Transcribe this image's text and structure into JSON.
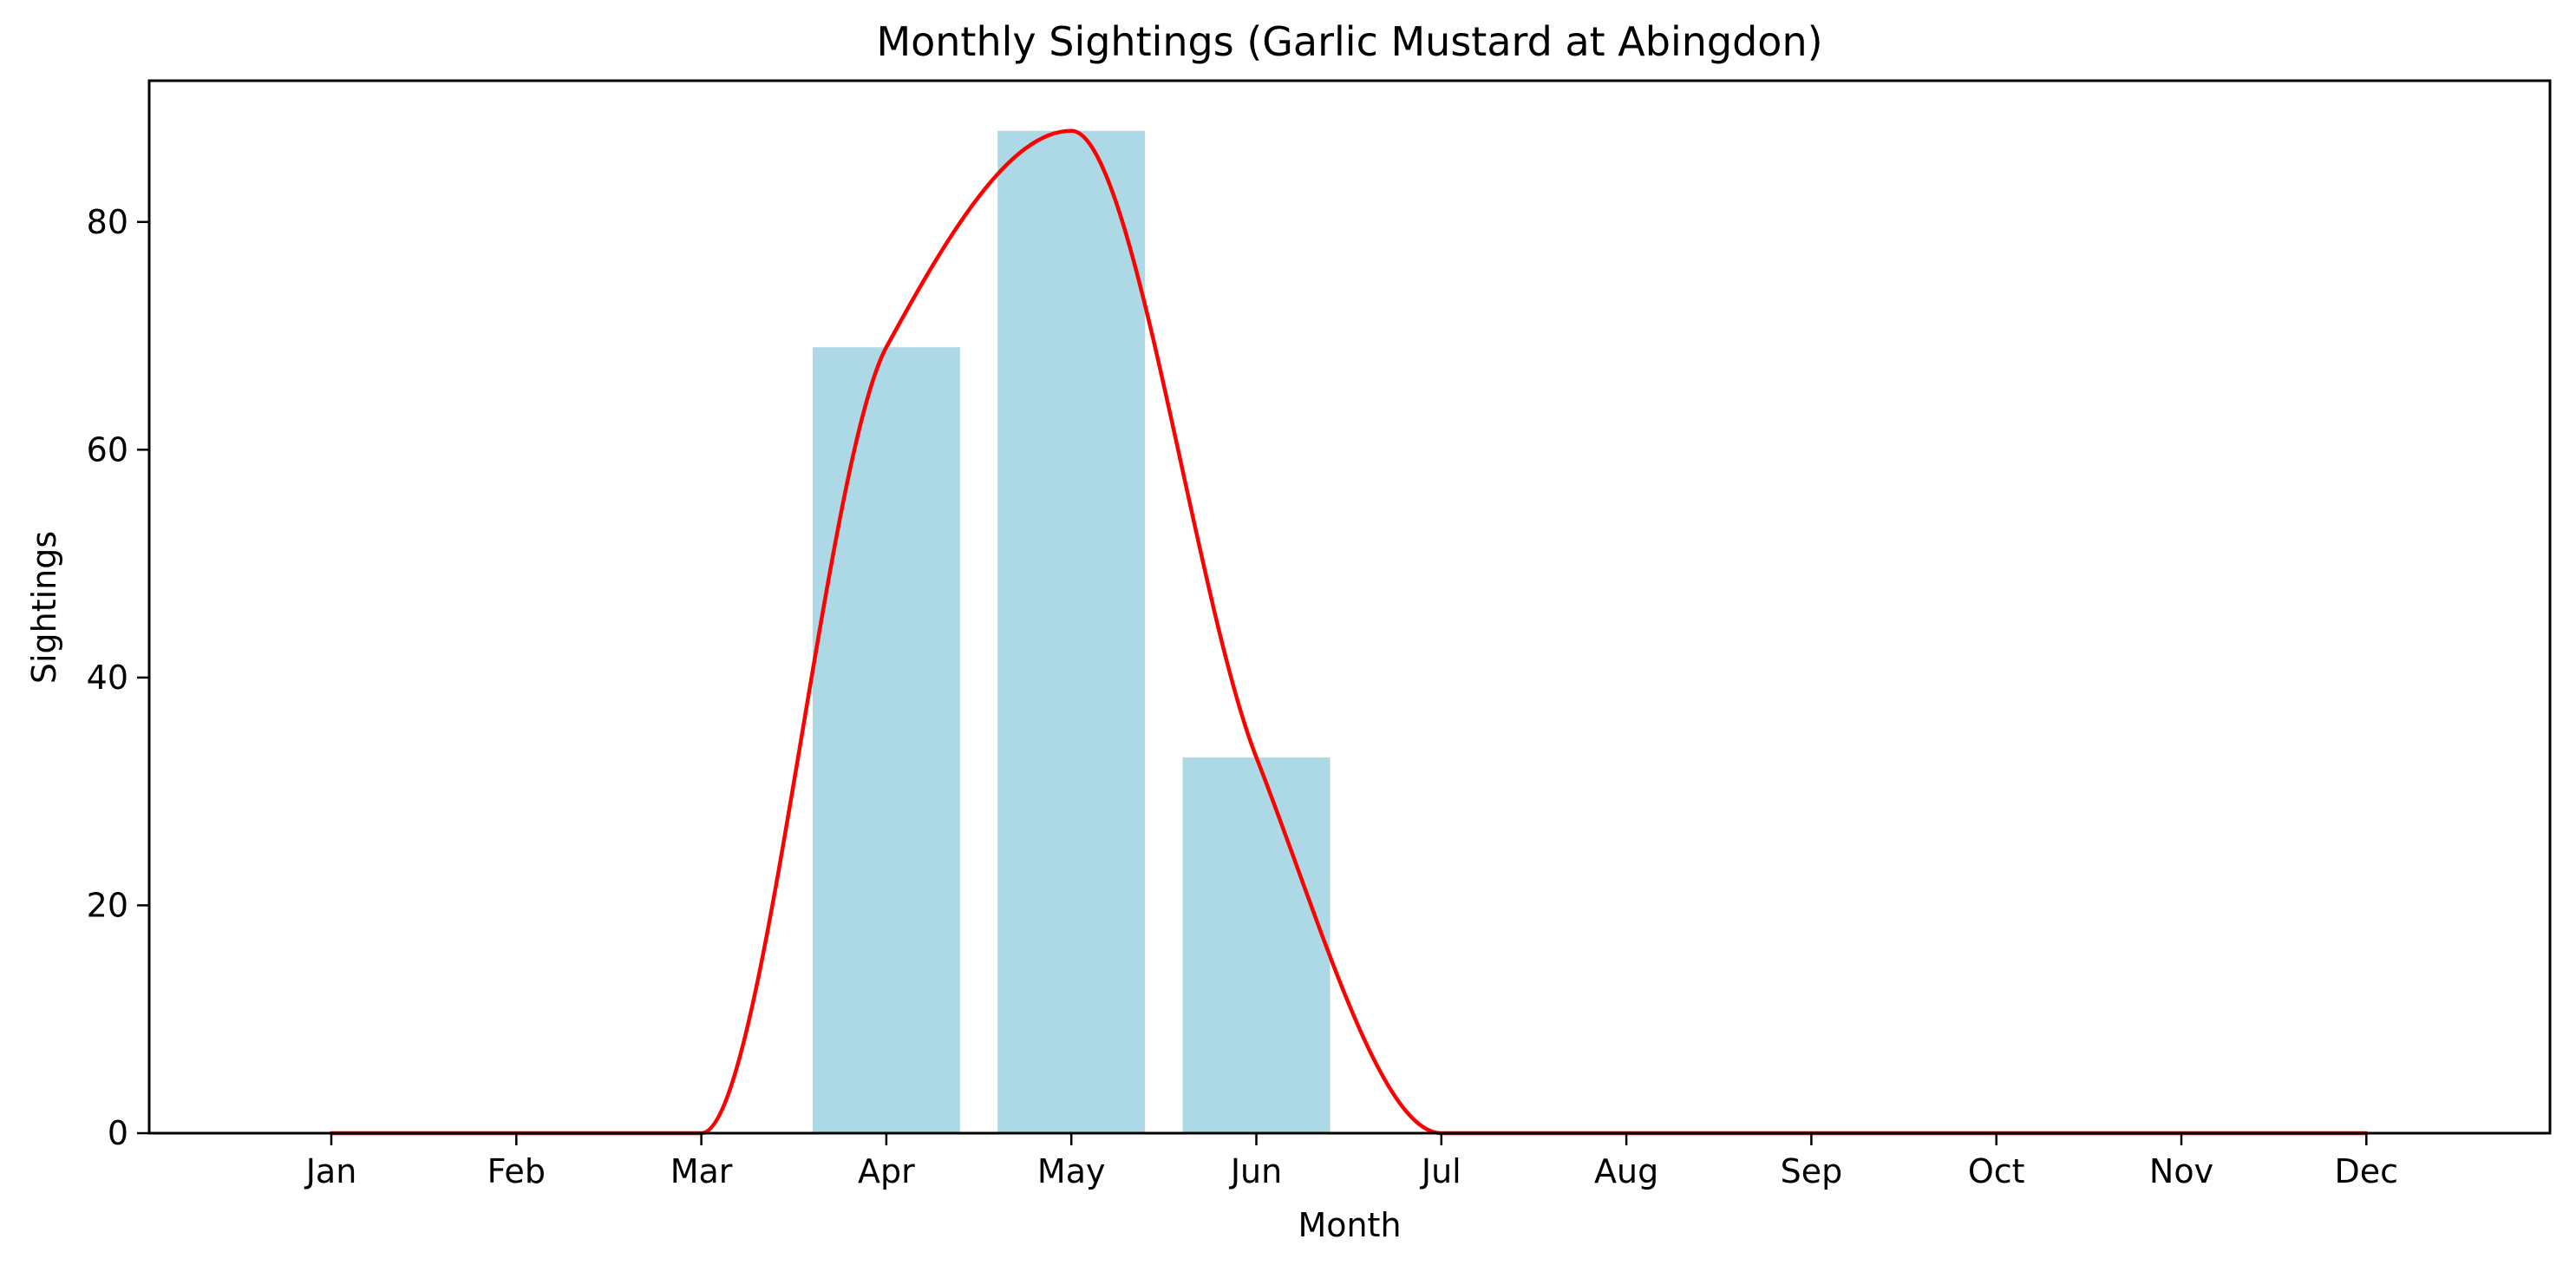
{
  "chart_data": {
    "type": "bar",
    "title": "Monthly Sightings (Garlic Mustard at Abingdon)",
    "xlabel": "Month",
    "ylabel": "Sightings",
    "categories": [
      "Jan",
      "Feb",
      "Mar",
      "Apr",
      "May",
      "Jun",
      "Jul",
      "Aug",
      "Sep",
      "Oct",
      "Nov",
      "Dec"
    ],
    "series": [
      {
        "type": "bar",
        "values": [
          0,
          0,
          0,
          69,
          88,
          33,
          0,
          0,
          0,
          0,
          0,
          0
        ],
        "color": "#add8e6"
      },
      {
        "type": "line",
        "smooth": true,
        "values": [
          0,
          0,
          0,
          69,
          88,
          33,
          0,
          0,
          0,
          0,
          0,
          0
        ],
        "color": "#ff0000"
      }
    ],
    "ylim": [
      0,
      92.4
    ],
    "yticks": [
      0,
      20,
      40,
      60,
      80
    ],
    "grid": false,
    "legend": "none"
  }
}
